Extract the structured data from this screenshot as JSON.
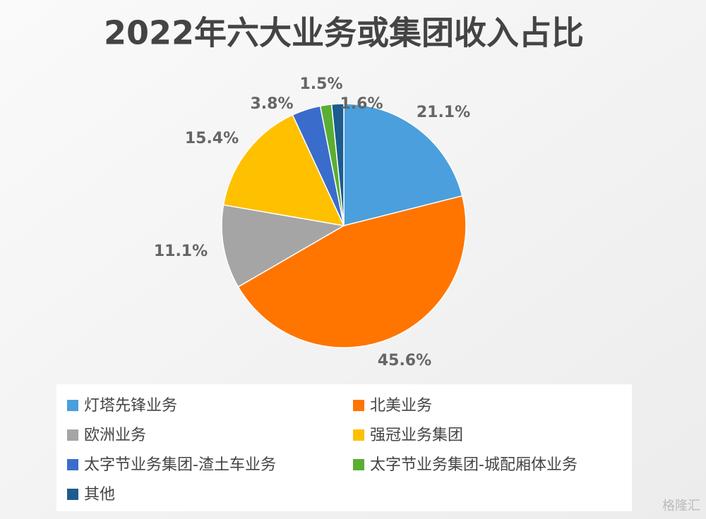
{
  "chart_data": {
    "type": "pie",
    "title": "2022年六大业务或集团收入占比",
    "categories": [
      "灯塔先锋业务",
      "北美业务",
      "欧洲业务",
      "强冠业务集团",
      "太字节业务集团-渣土车业务",
      "太字节业务集团-城配厢体业务",
      "其他"
    ],
    "values": [
      21.1,
      45.6,
      11.1,
      15.4,
      3.8,
      1.5,
      1.6
    ],
    "value_labels": [
      "21.1%",
      "45.6%",
      "11.1%",
      "15.4%",
      "3.8%",
      "1.5%",
      "1.6%"
    ],
    "colors": [
      "#4a9fdc",
      "#ff7500",
      "#a5a5a5",
      "#ffc000",
      "#3a6ccc",
      "#5aae32",
      "#1c5c8e"
    ],
    "legend": "bottom"
  },
  "watermark": "格隆汇"
}
